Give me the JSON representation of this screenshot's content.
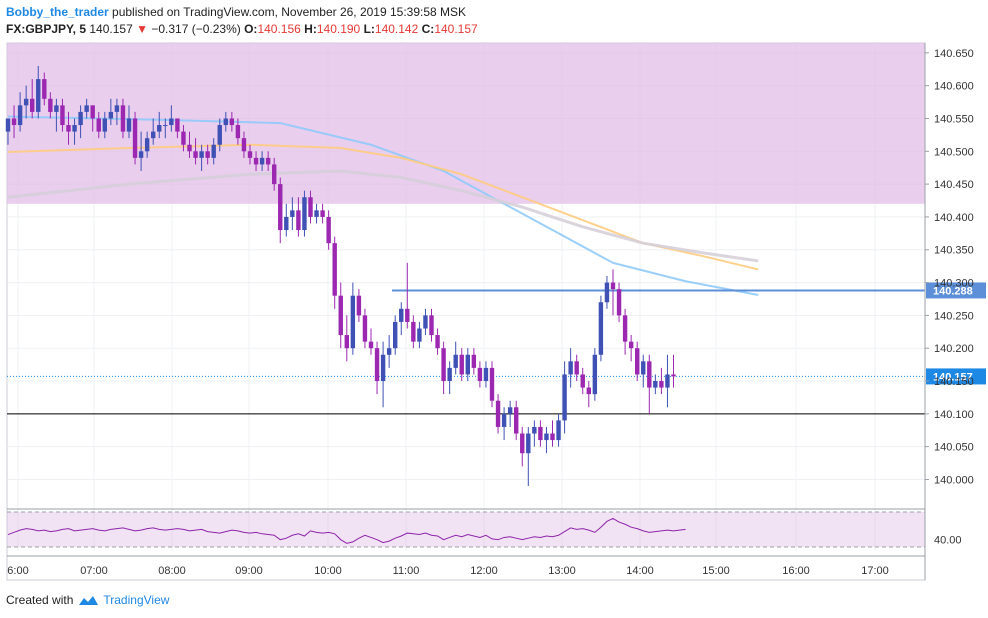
{
  "header": {
    "author": "Bobby_the_trader",
    "published_text": " published on TradingView.com, November 26, 2019 15:39:58 MSK",
    "symbol": "FX:GBPJPY, 5",
    "last_price": "140.157",
    "change_arrow": "▼",
    "change": "−0.317 (−0.23%)",
    "o_label": "O:",
    "o_value": "140.156",
    "h_label": "H:",
    "h_value": "140.190",
    "l_label": "L:",
    "l_value": "140.142",
    "c_label": "C:",
    "c_value": "140.157"
  },
  "footer": {
    "created_with": "Created with",
    "brand": "TradingView"
  },
  "colors": {
    "bull": "#3f51b5",
    "bear": "#9c27b0",
    "zone": "#e1bee7",
    "ma_blue": "#90caf9",
    "ma_orange": "#ffcc80",
    "ma_grey": "#d6cfd9",
    "resistance_line": "#5c8fd8",
    "price_line": "#1e88e5",
    "rsi": "#8e24aa"
  },
  "chart_data": {
    "type": "candlestick",
    "symbol": "FX:GBPJPY",
    "timeframe": "5",
    "x_ticks": [
      "6:00",
      "07:00",
      "08:00",
      "09:00",
      "10:00",
      "11:00",
      "12:00",
      "13:00",
      "14:00",
      "15:00",
      "16:00",
      "17:00"
    ],
    "y_ticks": [
      "140.650",
      "140.600",
      "140.550",
      "140.500",
      "140.450",
      "140.400",
      "140.350",
      "140.300",
      "140.250",
      "140.200",
      "140.150",
      "140.100",
      "140.050",
      "140.000"
    ],
    "ylim": [
      139.955,
      140.665
    ],
    "supply_zone": [
      140.42,
      140.665
    ],
    "horizontal_levels": [
      {
        "price": 140.288,
        "label": "140.288",
        "style": "resistance"
      },
      {
        "price": 140.1,
        "label": "",
        "style": "support"
      }
    ],
    "last_price_label": "140.157",
    "candles": [
      [
        140.53,
        140.55,
        140.51,
        140.55
      ],
      [
        140.55,
        140.57,
        140.52,
        140.54
      ],
      [
        140.54,
        140.59,
        140.53,
        140.57
      ],
      [
        140.57,
        140.6,
        140.55,
        140.58
      ],
      [
        140.58,
        140.61,
        140.55,
        140.56
      ],
      [
        140.56,
        140.63,
        140.55,
        140.61
      ],
      [
        140.61,
        140.62,
        140.57,
        140.58
      ],
      [
        140.58,
        140.59,
        140.55,
        140.56
      ],
      [
        140.56,
        140.58,
        140.53,
        140.57
      ],
      [
        140.57,
        140.58,
        140.53,
        140.54
      ],
      [
        140.54,
        140.56,
        140.51,
        140.53
      ],
      [
        140.53,
        140.55,
        140.51,
        140.54
      ],
      [
        140.54,
        140.57,
        140.52,
        140.56
      ],
      [
        140.56,
        140.58,
        140.55,
        140.57
      ],
      [
        140.57,
        140.57,
        140.53,
        140.55
      ],
      [
        140.55,
        140.56,
        140.52,
        140.53
      ],
      [
        140.53,
        140.56,
        140.52,
        140.55
      ],
      [
        140.55,
        140.58,
        140.54,
        140.56
      ],
      [
        140.56,
        140.58,
        140.54,
        140.57
      ],
      [
        140.57,
        140.58,
        140.52,
        140.53
      ],
      [
        140.53,
        140.57,
        140.52,
        140.55
      ],
      [
        140.55,
        140.56,
        140.48,
        140.49
      ],
      [
        140.49,
        140.53,
        140.47,
        140.5
      ],
      [
        140.5,
        140.53,
        140.49,
        140.52
      ],
      [
        140.52,
        140.55,
        140.51,
        140.53
      ],
      [
        140.53,
        140.56,
        140.52,
        140.54
      ],
      [
        140.54,
        140.55,
        140.52,
        140.54
      ],
      [
        140.54,
        140.57,
        140.53,
        140.55
      ],
      [
        140.55,
        140.55,
        140.52,
        140.53
      ],
      [
        140.53,
        140.54,
        140.5,
        140.51
      ],
      [
        140.51,
        140.53,
        140.49,
        140.5
      ],
      [
        140.5,
        140.52,
        140.48,
        140.49
      ],
      [
        140.49,
        140.51,
        140.47,
        140.5
      ],
      [
        140.5,
        140.51,
        140.48,
        140.49
      ],
      [
        140.49,
        140.52,
        140.48,
        140.51
      ],
      [
        140.51,
        140.55,
        140.5,
        140.54
      ],
      [
        140.54,
        140.56,
        140.53,
        140.55
      ],
      [
        140.55,
        140.56,
        140.53,
        140.54
      ],
      [
        140.54,
        140.55,
        140.51,
        140.52
      ],
      [
        140.52,
        140.53,
        140.49,
        140.5
      ],
      [
        140.5,
        140.51,
        140.48,
        140.49
      ],
      [
        140.49,
        140.5,
        140.47,
        140.48
      ],
      [
        140.48,
        140.5,
        140.47,
        140.49
      ],
      [
        140.49,
        140.5,
        140.47,
        140.48
      ],
      [
        140.48,
        140.49,
        140.44,
        140.45
      ],
      [
        140.45,
        140.46,
        140.36,
        140.38
      ],
      [
        140.38,
        140.42,
        140.37,
        140.4
      ],
      [
        140.4,
        140.43,
        140.38,
        140.41
      ],
      [
        140.41,
        140.43,
        140.37,
        140.38
      ],
      [
        140.38,
        140.44,
        140.37,
        140.43
      ],
      [
        140.43,
        140.44,
        140.39,
        140.4
      ],
      [
        140.4,
        140.42,
        140.39,
        140.41
      ],
      [
        140.41,
        140.42,
        140.39,
        140.4
      ],
      [
        140.4,
        140.41,
        140.35,
        140.36
      ],
      [
        140.36,
        140.37,
        140.26,
        140.28
      ],
      [
        140.28,
        140.3,
        140.2,
        140.22
      ],
      [
        140.22,
        140.25,
        140.18,
        140.2
      ],
      [
        140.2,
        140.3,
        140.19,
        140.28
      ],
      [
        140.28,
        140.29,
        140.24,
        140.25
      ],
      [
        140.25,
        140.26,
        140.2,
        140.21
      ],
      [
        140.21,
        140.23,
        140.19,
        140.2
      ],
      [
        140.2,
        140.21,
        140.13,
        140.15
      ],
      [
        140.15,
        140.21,
        140.11,
        140.19
      ],
      [
        140.19,
        140.22,
        140.17,
        140.2
      ],
      [
        140.2,
        140.25,
        140.19,
        140.24
      ],
      [
        140.24,
        140.27,
        140.22,
        140.26
      ],
      [
        140.26,
        140.33,
        140.23,
        140.24
      ],
      [
        140.24,
        140.25,
        140.2,
        140.21
      ],
      [
        140.21,
        140.24,
        140.2,
        140.23
      ],
      [
        140.23,
        140.26,
        140.22,
        140.25
      ],
      [
        140.25,
        140.26,
        140.21,
        140.22
      ],
      [
        140.22,
        140.23,
        140.19,
        140.2
      ],
      [
        140.2,
        140.21,
        140.13,
        140.15
      ],
      [
        140.15,
        140.18,
        140.13,
        140.17
      ],
      [
        140.17,
        140.21,
        140.16,
        140.19
      ],
      [
        140.19,
        140.2,
        140.15,
        140.16
      ],
      [
        140.16,
        140.2,
        140.15,
        140.19
      ],
      [
        140.19,
        140.2,
        140.16,
        140.17
      ],
      [
        140.17,
        140.18,
        140.14,
        140.15
      ],
      [
        140.15,
        140.18,
        140.14,
        140.17
      ],
      [
        140.17,
        140.18,
        140.11,
        140.12
      ],
      [
        140.12,
        140.13,
        140.07,
        140.08
      ],
      [
        140.08,
        140.11,
        140.06,
        140.1
      ],
      [
        140.1,
        140.12,
        140.08,
        140.11
      ],
      [
        140.11,
        140.12,
        140.06,
        140.07
      ],
      [
        140.07,
        140.08,
        140.02,
        140.04
      ],
      [
        140.04,
        140.08,
        139.99,
        140.07
      ],
      [
        140.07,
        140.09,
        140.05,
        140.08
      ],
      [
        140.08,
        140.09,
        140.05,
        140.06
      ],
      [
        140.06,
        140.08,
        140.04,
        140.07
      ],
      [
        140.07,
        140.09,
        140.05,
        140.06
      ],
      [
        140.06,
        140.1,
        140.05,
        140.09
      ],
      [
        140.09,
        140.18,
        140.07,
        140.16
      ],
      [
        140.16,
        140.2,
        140.14,
        140.18
      ],
      [
        140.18,
        140.19,
        140.15,
        140.16
      ],
      [
        140.16,
        140.17,
        140.13,
        140.14
      ],
      [
        140.14,
        140.15,
        140.11,
        140.13
      ],
      [
        140.13,
        140.2,
        140.12,
        140.19
      ],
      [
        140.19,
        140.28,
        140.18,
        140.27
      ],
      [
        140.27,
        140.31,
        140.26,
        140.3
      ],
      [
        140.3,
        140.32,
        140.25,
        140.29
      ],
      [
        140.29,
        140.3,
        140.24,
        140.25
      ],
      [
        140.25,
        140.26,
        140.19,
        140.21
      ],
      [
        140.21,
        140.22,
        140.18,
        140.2
      ],
      [
        140.2,
        140.21,
        140.15,
        140.16
      ],
      [
        140.16,
        140.19,
        140.14,
        140.18
      ],
      [
        140.18,
        140.19,
        140.1,
        140.14
      ],
      [
        140.14,
        140.16,
        140.13,
        140.15
      ],
      [
        140.15,
        140.17,
        140.13,
        140.14
      ],
      [
        140.14,
        140.19,
        140.11,
        140.16
      ],
      [
        140.16,
        140.19,
        140.14,
        140.157
      ]
    ],
    "moving_averages": [
      {
        "color_key": "ma_blue",
        "points": [
          [
            0,
            140.553
          ],
          [
            25,
            140.548
          ],
          [
            45,
            140.543
          ],
          [
            60,
            140.51
          ],
          [
            72,
            140.47
          ],
          [
            80,
            140.43
          ],
          [
            90,
            140.38
          ],
          [
            100,
            140.33
          ],
          [
            112,
            140.302
          ],
          [
            124,
            140.281
          ]
        ]
      },
      {
        "color_key": "ma_orange",
        "points": [
          [
            0,
            140.499
          ],
          [
            20,
            140.505
          ],
          [
            40,
            140.51
          ],
          [
            55,
            140.505
          ],
          [
            65,
            140.49
          ],
          [
            75,
            140.465
          ],
          [
            85,
            140.43
          ],
          [
            95,
            140.395
          ],
          [
            105,
            140.36
          ],
          [
            115,
            140.34
          ],
          [
            124,
            140.32
          ]
        ]
      },
      {
        "color_key": "ma_grey",
        "points": [
          [
            0,
            140.43
          ],
          [
            20,
            140.45
          ],
          [
            40,
            140.465
          ],
          [
            55,
            140.47
          ],
          [
            65,
            140.46
          ],
          [
            75,
            140.44
          ],
          [
            85,
            140.415
          ],
          [
            95,
            140.385
          ],
          [
            105,
            140.36
          ],
          [
            115,
            140.345
          ],
          [
            124,
            140.333
          ]
        ]
      }
    ],
    "rsi": {
      "label": "40.00",
      "values": [
        47,
        50,
        53,
        55,
        54,
        52,
        53,
        51,
        52,
        54,
        55,
        52,
        53,
        54,
        55,
        53,
        52,
        54,
        55,
        56,
        54,
        52,
        53,
        55,
        56,
        54,
        53,
        54,
        55,
        54,
        52,
        53,
        54,
        51,
        50,
        49,
        51,
        53,
        52,
        50,
        49,
        50,
        48,
        47,
        46,
        40,
        42,
        46,
        48,
        45,
        52,
        50,
        49,
        50,
        48,
        40,
        35,
        37,
        42,
        46,
        43,
        40,
        36,
        38,
        42,
        45,
        49,
        48,
        47,
        49,
        46,
        45,
        40,
        43,
        46,
        44,
        47,
        45,
        43,
        46,
        41,
        40,
        43,
        44,
        42,
        40,
        42,
        44,
        43,
        45,
        44,
        46,
        51,
        56,
        54,
        55,
        53,
        50,
        57,
        65,
        69,
        64,
        61,
        57,
        55,
        52,
        50,
        51,
        52,
        53,
        52,
        53,
        54
      ]
    }
  }
}
